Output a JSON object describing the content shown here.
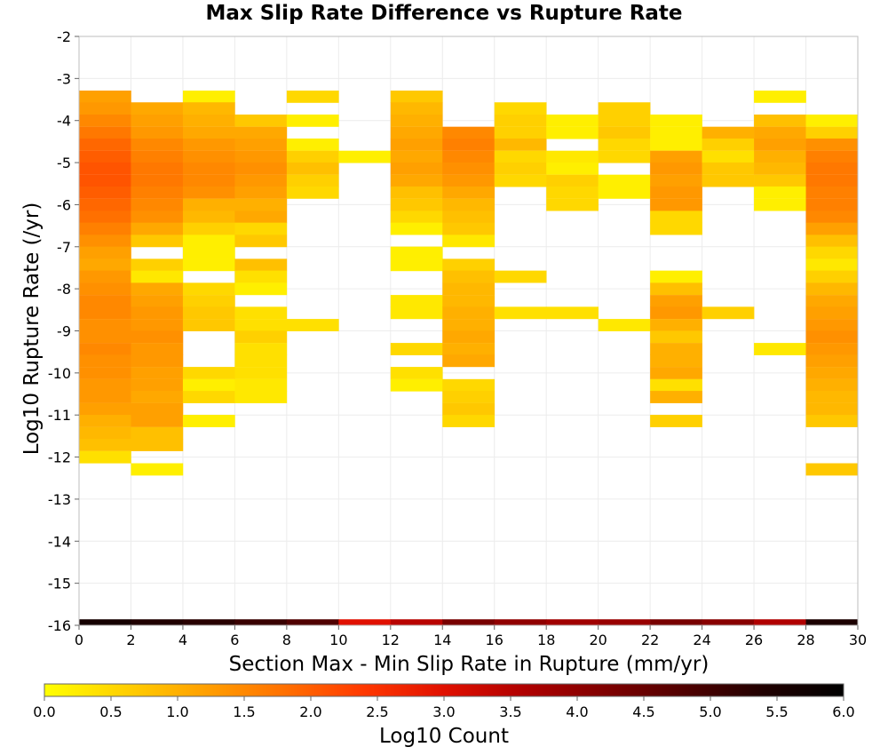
{
  "chart_data": {
    "type": "heatmap",
    "title": "Max Slip Rate Difference vs Rupture Rate",
    "xlabel": "Section Max - Min Slip Rate in Rupture (mm/yr)",
    "ylabel": "Log10 Rupture Rate (/yr)",
    "xlim": [
      0,
      30
    ],
    "ylim": [
      -16,
      -2
    ],
    "x_ticks": [
      0,
      2,
      4,
      6,
      8,
      10,
      12,
      14,
      16,
      18,
      20,
      22,
      24,
      26,
      28,
      30
    ],
    "y_ticks": [
      -2,
      -3,
      -4,
      -5,
      -6,
      -7,
      -8,
      -9,
      -10,
      -11,
      -12,
      -13,
      -14,
      -15,
      -16
    ],
    "x_bin_width": 2,
    "y_bin_height": 0.286,
    "grid": true,
    "colorbar": {
      "label": "Log10 Count",
      "min": 0.0,
      "max": 6.0,
      "ticks": [
        "0.0",
        "0.5",
        "1.0",
        "1.5",
        "2.0",
        "2.5",
        "3.0",
        "3.5",
        "4.0",
        "4.5",
        "5.0",
        "5.5",
        "6.0"
      ],
      "colors": [
        "#ffff00",
        "#ffd000",
        "#ffa000",
        "#ff7000",
        "#ff3800",
        "#e01000",
        "#b00000",
        "#800000",
        "#500000",
        "#200000",
        "#000000"
      ]
    },
    "cells": [
      [
        0,
        -3.43,
        1.2
      ],
      [
        0,
        -3.71,
        1.3
      ],
      [
        0,
        -4.0,
        1.5
      ],
      [
        0,
        -4.29,
        1.7
      ],
      [
        0,
        -4.57,
        1.9
      ],
      [
        0,
        -4.86,
        2.0
      ],
      [
        0,
        -5.14,
        2.1
      ],
      [
        0,
        -5.43,
        2.1
      ],
      [
        0,
        -5.71,
        2.0
      ],
      [
        0,
        -6.0,
        1.9
      ],
      [
        0,
        -6.29,
        1.8
      ],
      [
        0,
        -6.57,
        1.6
      ],
      [
        0,
        -6.86,
        1.4
      ],
      [
        0,
        -7.14,
        1.2
      ],
      [
        0,
        -7.43,
        1.1
      ],
      [
        0,
        -7.71,
        1.3
      ],
      [
        0,
        -8.0,
        1.4
      ],
      [
        0,
        -8.29,
        1.5
      ],
      [
        0,
        -8.57,
        1.5
      ],
      [
        0,
        -8.86,
        1.4
      ],
      [
        0,
        -9.14,
        1.4
      ],
      [
        0,
        -9.43,
        1.5
      ],
      [
        0,
        -9.71,
        1.4
      ],
      [
        0,
        -10.0,
        1.4
      ],
      [
        0,
        -10.29,
        1.3
      ],
      [
        0,
        -10.57,
        1.3
      ],
      [
        0,
        -10.86,
        1.2
      ],
      [
        0,
        -11.14,
        1.0
      ],
      [
        0,
        -11.43,
        0.9
      ],
      [
        0,
        -11.71,
        0.8
      ],
      [
        0,
        -12.0,
        0.4
      ],
      [
        2,
        -3.71,
        1.1
      ],
      [
        2,
        -4.0,
        1.2
      ],
      [
        2,
        -4.29,
        1.3
      ],
      [
        2,
        -4.57,
        1.5
      ],
      [
        2,
        -4.86,
        1.6
      ],
      [
        2,
        -5.14,
        1.7
      ],
      [
        2,
        -5.43,
        1.7
      ],
      [
        2,
        -5.71,
        1.6
      ],
      [
        2,
        -6.0,
        1.5
      ],
      [
        2,
        -6.29,
        1.4
      ],
      [
        2,
        -6.57,
        1.1
      ],
      [
        2,
        -6.86,
        0.7
      ],
      [
        2,
        -7.43,
        0.6
      ],
      [
        2,
        -7.71,
        0.3
      ],
      [
        2,
        -8.0,
        1.1
      ],
      [
        2,
        -8.29,
        1.2
      ],
      [
        2,
        -8.57,
        1.3
      ],
      [
        2,
        -8.86,
        1.3
      ],
      [
        2,
        -9.14,
        1.4
      ],
      [
        2,
        -9.43,
        1.3
      ],
      [
        2,
        -9.71,
        1.3
      ],
      [
        2,
        -10.0,
        1.2
      ],
      [
        2,
        -10.29,
        1.2
      ],
      [
        2,
        -10.57,
        1.1
      ],
      [
        2,
        -10.86,
        1.2
      ],
      [
        2,
        -11.14,
        1.2
      ],
      [
        2,
        -11.43,
        0.8
      ],
      [
        2,
        -11.71,
        0.8
      ],
      [
        2,
        -12.29,
        0.2
      ],
      [
        4,
        -3.43,
        0.2
      ],
      [
        4,
        -3.71,
        0.9
      ],
      [
        4,
        -4.0,
        1.0
      ],
      [
        4,
        -4.29,
        1.1
      ],
      [
        4,
        -4.57,
        1.3
      ],
      [
        4,
        -4.86,
        1.4
      ],
      [
        4,
        -5.14,
        1.5
      ],
      [
        4,
        -5.43,
        1.5
      ],
      [
        4,
        -5.71,
        1.4
      ],
      [
        4,
        -6.0,
        1.0
      ],
      [
        4,
        -6.29,
        0.9
      ],
      [
        4,
        -6.57,
        0.6
      ],
      [
        4,
        -6.86,
        0.2
      ],
      [
        4,
        -7.14,
        0.2
      ],
      [
        4,
        -7.43,
        0.2
      ],
      [
        4,
        -8.0,
        0.5
      ],
      [
        4,
        -8.29,
        0.6
      ],
      [
        4,
        -8.57,
        0.7
      ],
      [
        4,
        -8.86,
        0.7
      ],
      [
        4,
        -10.0,
        0.5
      ],
      [
        4,
        -10.29,
        0.2
      ],
      [
        4,
        -10.57,
        0.5
      ],
      [
        4,
        -11.14,
        0.2
      ],
      [
        6,
        -4.0,
        0.7
      ],
      [
        6,
        -4.29,
        1.1
      ],
      [
        6,
        -4.57,
        1.2
      ],
      [
        6,
        -4.86,
        1.3
      ],
      [
        6,
        -5.14,
        1.4
      ],
      [
        6,
        -5.43,
        1.3
      ],
      [
        6,
        -5.71,
        1.2
      ],
      [
        6,
        -6.0,
        1.0
      ],
      [
        6,
        -6.29,
        1.1
      ],
      [
        6,
        -6.57,
        0.5
      ],
      [
        6,
        -6.86,
        0.7
      ],
      [
        6,
        -7.43,
        0.8
      ],
      [
        6,
        -7.71,
        0.4
      ],
      [
        6,
        -8.0,
        0.2
      ],
      [
        6,
        -8.57,
        0.4
      ],
      [
        6,
        -8.86,
        0.4
      ],
      [
        6,
        -9.14,
        0.6
      ],
      [
        6,
        -9.43,
        0.4
      ],
      [
        6,
        -9.71,
        0.4
      ],
      [
        6,
        -10.0,
        0.4
      ],
      [
        6,
        -10.29,
        0.3
      ],
      [
        6,
        -10.57,
        0.3
      ],
      [
        8,
        -3.43,
        0.5
      ],
      [
        8,
        -4.0,
        0.2
      ],
      [
        8,
        -4.57,
        0.2
      ],
      [
        8,
        -4.86,
        0.6
      ],
      [
        8,
        -5.14,
        0.8
      ],
      [
        8,
        -5.43,
        0.6
      ],
      [
        8,
        -5.71,
        0.5
      ],
      [
        8,
        -8.86,
        0.4
      ],
      [
        10,
        -4.86,
        0.2
      ],
      [
        12,
        -3.43,
        0.7
      ],
      [
        12,
        -3.71,
        0.9
      ],
      [
        12,
        -4.0,
        1.0
      ],
      [
        12,
        -4.29,
        1.1
      ],
      [
        12,
        -4.57,
        1.2
      ],
      [
        12,
        -4.86,
        1.1
      ],
      [
        12,
        -5.14,
        1.2
      ],
      [
        12,
        -5.43,
        1.1
      ],
      [
        12,
        -5.71,
        0.8
      ],
      [
        12,
        -6.0,
        0.7
      ],
      [
        12,
        -6.29,
        0.5
      ],
      [
        12,
        -6.57,
        0.2
      ],
      [
        12,
        -7.14,
        0.2
      ],
      [
        12,
        -7.43,
        0.2
      ],
      [
        12,
        -8.29,
        0.3
      ],
      [
        12,
        -8.57,
        0.3
      ],
      [
        12,
        -9.43,
        0.5
      ],
      [
        12,
        -10.0,
        0.4
      ],
      [
        12,
        -10.29,
        0.2
      ],
      [
        14,
        -4.29,
        1.5
      ],
      [
        14,
        -4.57,
        1.6
      ],
      [
        14,
        -4.86,
        1.5
      ],
      [
        14,
        -5.14,
        1.4
      ],
      [
        14,
        -5.43,
        1.3
      ],
      [
        14,
        -5.71,
        1.1
      ],
      [
        14,
        -6.0,
        0.9
      ],
      [
        14,
        -6.29,
        0.8
      ],
      [
        14,
        -6.57,
        0.7
      ],
      [
        14,
        -6.86,
        0.3
      ],
      [
        14,
        -7.43,
        0.6
      ],
      [
        14,
        -7.71,
        0.8
      ],
      [
        14,
        -8.0,
        0.9
      ],
      [
        14,
        -8.29,
        0.9
      ],
      [
        14,
        -8.57,
        1.0
      ],
      [
        14,
        -8.86,
        1.0
      ],
      [
        14,
        -9.14,
        1.1
      ],
      [
        14,
        -9.43,
        1.0
      ],
      [
        14,
        -9.71,
        1.1
      ],
      [
        14,
        -10.29,
        0.5
      ],
      [
        14,
        -10.57,
        0.6
      ],
      [
        14,
        -10.86,
        0.7
      ],
      [
        14,
        -11.14,
        0.5
      ],
      [
        16,
        -3.71,
        0.5
      ],
      [
        16,
        -4.0,
        0.6
      ],
      [
        16,
        -4.29,
        0.6
      ],
      [
        16,
        -4.57,
        0.9
      ],
      [
        16,
        -4.86,
        0.5
      ],
      [
        16,
        -5.14,
        0.6
      ],
      [
        16,
        -5.43,
        0.5
      ],
      [
        16,
        -7.71,
        0.5
      ],
      [
        16,
        -8.57,
        0.4
      ],
      [
        18,
        -4.0,
        0.2
      ],
      [
        18,
        -4.29,
        0.2
      ],
      [
        18,
        -4.86,
        0.3
      ],
      [
        18,
        -5.14,
        0.2
      ],
      [
        18,
        -5.43,
        0.6
      ],
      [
        18,
        -5.71,
        0.5
      ],
      [
        18,
        -6.0,
        0.5
      ],
      [
        18,
        -8.57,
        0.4
      ],
      [
        20,
        -3.71,
        0.6
      ],
      [
        20,
        -4.0,
        0.6
      ],
      [
        20,
        -4.29,
        0.7
      ],
      [
        20,
        -4.57,
        0.5
      ],
      [
        20,
        -4.86,
        0.5
      ],
      [
        20,
        -5.43,
        0.2
      ],
      [
        20,
        -5.71,
        0.2
      ],
      [
        20,
        -8.86,
        0.3
      ],
      [
        22,
        -4.0,
        0.2
      ],
      [
        22,
        -4.29,
        0.2
      ],
      [
        22,
        -4.57,
        0.2
      ],
      [
        22,
        -4.86,
        1.2
      ],
      [
        22,
        -5.14,
        1.3
      ],
      [
        22,
        -5.43,
        1.2
      ],
      [
        22,
        -5.71,
        1.3
      ],
      [
        22,
        -6.0,
        1.3
      ],
      [
        22,
        -6.29,
        0.5
      ],
      [
        22,
        -6.57,
        0.5
      ],
      [
        22,
        -7.71,
        0.2
      ],
      [
        22,
        -8.0,
        0.8
      ],
      [
        22,
        -8.29,
        1.2
      ],
      [
        22,
        -8.57,
        1.3
      ],
      [
        22,
        -8.86,
        1.0
      ],
      [
        22,
        -9.14,
        0.7
      ],
      [
        22,
        -9.43,
        1.0
      ],
      [
        22,
        -9.71,
        1.0
      ],
      [
        22,
        -10.0,
        1.1
      ],
      [
        22,
        -10.29,
        0.4
      ],
      [
        22,
        -10.57,
        1.0
      ],
      [
        22,
        -11.14,
        0.6
      ],
      [
        24,
        -4.29,
        1.0
      ],
      [
        24,
        -4.57,
        0.6
      ],
      [
        24,
        -4.86,
        0.4
      ],
      [
        24,
        -5.14,
        0.7
      ],
      [
        24,
        -5.43,
        0.7
      ],
      [
        24,
        -8.57,
        0.6
      ],
      [
        26,
        -3.43,
        0.2
      ],
      [
        26,
        -4.0,
        0.8
      ],
      [
        26,
        -4.29,
        1.1
      ],
      [
        26,
        -4.57,
        1.2
      ],
      [
        26,
        -4.86,
        1.0
      ],
      [
        26,
        -5.14,
        0.9
      ],
      [
        26,
        -5.43,
        0.7
      ],
      [
        26,
        -5.71,
        0.2
      ],
      [
        26,
        -6.0,
        0.2
      ],
      [
        26,
        -9.43,
        0.3
      ],
      [
        28,
        -4.0,
        0.2
      ],
      [
        28,
        -4.29,
        0.6
      ],
      [
        28,
        -4.57,
        1.4
      ],
      [
        28,
        -4.86,
        1.6
      ],
      [
        28,
        -5.14,
        1.7
      ],
      [
        28,
        -5.43,
        1.7
      ],
      [
        28,
        -5.71,
        1.6
      ],
      [
        28,
        -6.0,
        1.6
      ],
      [
        28,
        -6.29,
        1.5
      ],
      [
        28,
        -6.57,
        1.2
      ],
      [
        28,
        -6.86,
        0.8
      ],
      [
        28,
        -7.14,
        0.5
      ],
      [
        28,
        -7.43,
        0.3
      ],
      [
        28,
        -7.71,
        0.6
      ],
      [
        28,
        -8.0,
        0.9
      ],
      [
        28,
        -8.29,
        1.1
      ],
      [
        28,
        -8.57,
        1.2
      ],
      [
        28,
        -8.86,
        1.3
      ],
      [
        28,
        -9.14,
        1.4
      ],
      [
        28,
        -9.43,
        1.3
      ],
      [
        28,
        -9.71,
        1.2
      ],
      [
        28,
        -10.0,
        1.1
      ],
      [
        28,
        -10.29,
        1.0
      ],
      [
        28,
        -10.57,
        0.9
      ],
      [
        28,
        -10.86,
        0.9
      ],
      [
        28,
        -11.14,
        0.7
      ],
      [
        28,
        -12.29,
        0.7
      ],
      [
        0,
        -16.0,
        5.6
      ],
      [
        2,
        -16.0,
        5.4
      ],
      [
        4,
        -16.0,
        5.3
      ],
      [
        6,
        -16.0,
        5.1
      ],
      [
        8,
        -16.0,
        4.8
      ],
      [
        10,
        -16.0,
        3.0
      ],
      [
        12,
        -16.0,
        3.5
      ],
      [
        14,
        -16.0,
        4.3
      ],
      [
        16,
        -16.0,
        4.0
      ],
      [
        18,
        -16.0,
        3.8
      ],
      [
        20,
        -16.0,
        3.9
      ],
      [
        22,
        -16.0,
        4.3
      ],
      [
        24,
        -16.0,
        4.1
      ],
      [
        26,
        -16.0,
        3.6
      ],
      [
        28,
        -16.0,
        5.5
      ]
    ]
  }
}
